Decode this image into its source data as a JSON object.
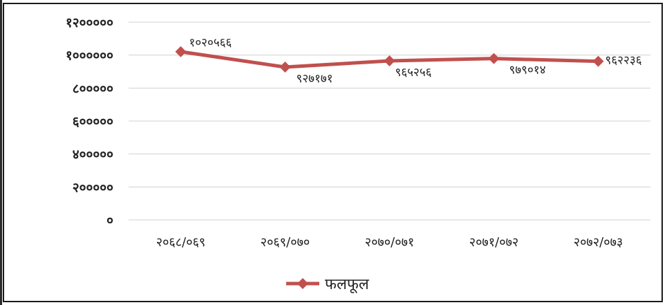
{
  "chart_data": {
    "type": "line",
    "title": "",
    "xlabel": "",
    "ylabel": "",
    "ylim": [
      0,
      1200000
    ],
    "grid": true,
    "legend_position": "bottom",
    "y_ticks": [
      {
        "value": 0,
        "label": "०"
      },
      {
        "value": 200000,
        "label": "२०००००"
      },
      {
        "value": 400000,
        "label": "४०००००"
      },
      {
        "value": 600000,
        "label": "६०००००"
      },
      {
        "value": 800000,
        "label": "८०००००"
      },
      {
        "value": 1000000,
        "label": "१००००००"
      },
      {
        "value": 1200000,
        "label": "१२०००००"
      }
    ],
    "categories": [
      "२०६८/०६९",
      "२०६९/०७०",
      "२०७०/०७१",
      "२०७१/०७२",
      "२०७२/०७३"
    ],
    "series": [
      {
        "name": "फलफूल",
        "color": "#c0504d",
        "values": [
          1020566,
          927171,
          965256,
          979014,
          962236
        ],
        "data_labels": [
          "१०२०५६६",
          "९२७१७१",
          "९६५२५६",
          "९७९०१४",
          "९६२२३६"
        ]
      }
    ]
  }
}
